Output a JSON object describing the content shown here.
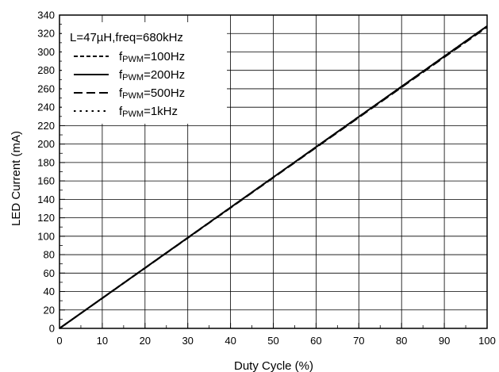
{
  "chart_data": {
    "type": "line",
    "title": "",
    "xlabel": "Duty Cycle (%)",
    "ylabel": "LED Current (mA)",
    "xlim": [
      0,
      100
    ],
    "ylim": [
      0,
      340
    ],
    "xticks": [
      0,
      10,
      20,
      30,
      40,
      50,
      60,
      70,
      80,
      90,
      100
    ],
    "yticks": [
      0,
      20,
      40,
      60,
      80,
      100,
      120,
      140,
      160,
      180,
      200,
      220,
      240,
      260,
      280,
      300,
      320,
      340
    ],
    "grid": true,
    "legend_position": "top-left",
    "legend_title": "L=47µH,freq=680kHz",
    "series": [
      {
        "name": "fPWM=100Hz",
        "name_prefix": "f",
        "name_sub": "PWM",
        "name_suffix": "=100Hz",
        "dash": "short-dash",
        "color": "#000000",
        "x": [
          0,
          100
        ],
        "y": [
          0,
          328
        ]
      },
      {
        "name": "fPWM=200Hz",
        "name_prefix": "f",
        "name_sub": "PWM",
        "name_suffix": "=200Hz",
        "dash": "solid",
        "color": "#000000",
        "x": [
          0,
          100
        ],
        "y": [
          0,
          328
        ]
      },
      {
        "name": "fPWM=500Hz",
        "name_prefix": "f",
        "name_sub": "PWM",
        "name_suffix": "=500Hz",
        "dash": "long-dash",
        "color": "#000000",
        "x": [
          0,
          100
        ],
        "y": [
          0,
          327
        ]
      },
      {
        "name": "fPWM=1kHz",
        "name_prefix": "f",
        "name_sub": "PWM",
        "name_suffix": "=1kHz",
        "dash": "dotted",
        "color": "#000000",
        "x": [
          0,
          100
        ],
        "y": [
          0,
          328
        ]
      }
    ]
  }
}
